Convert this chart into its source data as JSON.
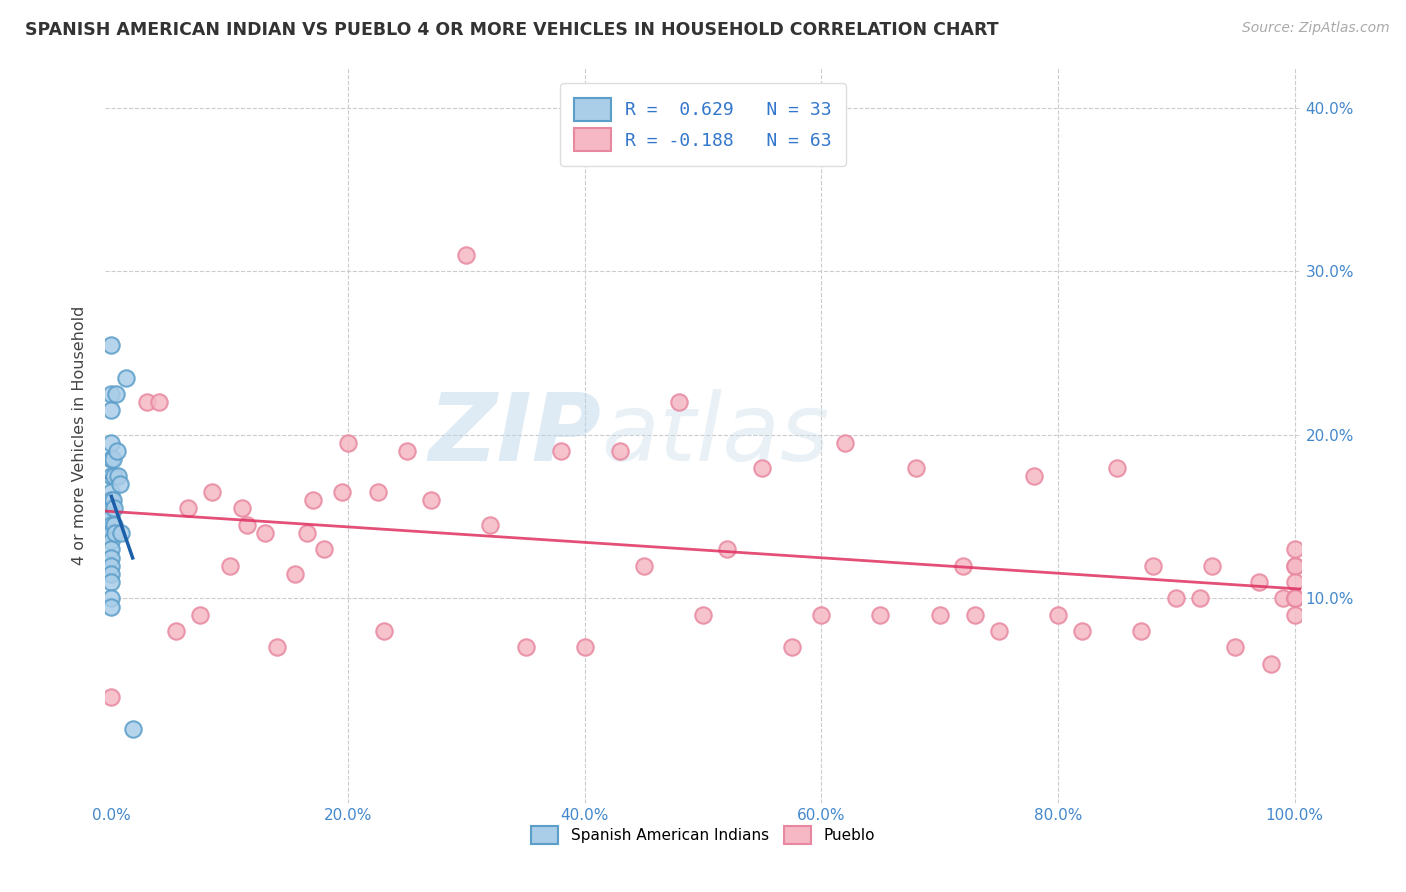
{
  "title": "SPANISH AMERICAN INDIAN VS PUEBLO 4 OR MORE VEHICLES IN HOUSEHOLD CORRELATION CHART",
  "source": "Source: ZipAtlas.com",
  "ylabel": "4 or more Vehicles in Household",
  "watermark_zip": "ZIP",
  "watermark_atlas": "atlas",
  "xlim": [
    -0.005,
    1.005
  ],
  "ylim": [
    -0.025,
    0.425
  ],
  "xticks": [
    0.0,
    0.2,
    0.4,
    0.6,
    0.8,
    1.0
  ],
  "xtick_labels": [
    "0.0%",
    "20.0%",
    "40.0%",
    "60.0%",
    "80.0%",
    "100.0%"
  ],
  "yticks": [
    0.0,
    0.1,
    0.2,
    0.3,
    0.4
  ],
  "ytick_labels_left": [
    "",
    "",
    "",
    "",
    ""
  ],
  "ytick_labels_right": [
    "",
    "10.0%",
    "20.0%",
    "30.0%",
    "40.0%"
  ],
  "legend_line1": "R =  0.629   N = 33",
  "legend_line2": "R = -0.188   N = 63",
  "blue_scatter_color": "#aacde8",
  "blue_edge_color": "#5b9ec9",
  "pink_scatter_color": "#f5b8c4",
  "pink_edge_color": "#e888a0",
  "blue_line_color": "#1a5fa8",
  "pink_line_color": "#e0306080",
  "grid_color": "#cccccc",
  "bg_color": "#ffffff",
  "tick_label_color": "#4488cc",
  "legend_text_color": "#3377cc",
  "blue_x": [
    0.0,
    0.0,
    0.0,
    0.0,
    0.0,
    0.0,
    0.0,
    0.0,
    0.0,
    0.0,
    0.0,
    0.0,
    0.0,
    0.0,
    0.0,
    0.0,
    0.0,
    0.0,
    0.0,
    0.0,
    0.001,
    0.001,
    0.002,
    0.002,
    0.002,
    0.003,
    0.004,
    0.005,
    0.006,
    0.007,
    0.008,
    0.012,
    0.018
  ],
  "blue_y": [
    0.255,
    0.225,
    0.215,
    0.195,
    0.185,
    0.175,
    0.165,
    0.16,
    0.155,
    0.15,
    0.145,
    0.14,
    0.135,
    0.13,
    0.125,
    0.12,
    0.115,
    0.11,
    0.1,
    0.095,
    0.185,
    0.16,
    0.175,
    0.155,
    0.145,
    0.14,
    0.225,
    0.19,
    0.175,
    0.17,
    0.14,
    0.235,
    0.02
  ],
  "pink_x": [
    0.0,
    0.03,
    0.04,
    0.055,
    0.065,
    0.075,
    0.085,
    0.1,
    0.11,
    0.115,
    0.13,
    0.14,
    0.155,
    0.165,
    0.17,
    0.18,
    0.195,
    0.2,
    0.225,
    0.23,
    0.25,
    0.27,
    0.3,
    0.32,
    0.35,
    0.38,
    0.4,
    0.43,
    0.45,
    0.48,
    0.5,
    0.52,
    0.55,
    0.575,
    0.6,
    0.62,
    0.65,
    0.68,
    0.7,
    0.72,
    0.73,
    0.75,
    0.78,
    0.8,
    0.82,
    0.85,
    0.87,
    0.88,
    0.9,
    0.92,
    0.93,
    0.95,
    0.97,
    0.98,
    0.99,
    1.0,
    1.0,
    1.0,
    1.0,
    1.0,
    1.0,
    1.0,
    1.0
  ],
  "pink_y": [
    0.04,
    0.22,
    0.22,
    0.08,
    0.155,
    0.09,
    0.165,
    0.12,
    0.155,
    0.145,
    0.14,
    0.07,
    0.115,
    0.14,
    0.16,
    0.13,
    0.165,
    0.195,
    0.165,
    0.08,
    0.19,
    0.16,
    0.31,
    0.145,
    0.07,
    0.19,
    0.07,
    0.19,
    0.12,
    0.22,
    0.09,
    0.13,
    0.18,
    0.07,
    0.09,
    0.195,
    0.09,
    0.18,
    0.09,
    0.12,
    0.09,
    0.08,
    0.175,
    0.09,
    0.08,
    0.18,
    0.08,
    0.12,
    0.1,
    0.1,
    0.12,
    0.07,
    0.11,
    0.06,
    0.1,
    0.12,
    0.13,
    0.1,
    0.12,
    0.1,
    0.11,
    0.1,
    0.09
  ]
}
